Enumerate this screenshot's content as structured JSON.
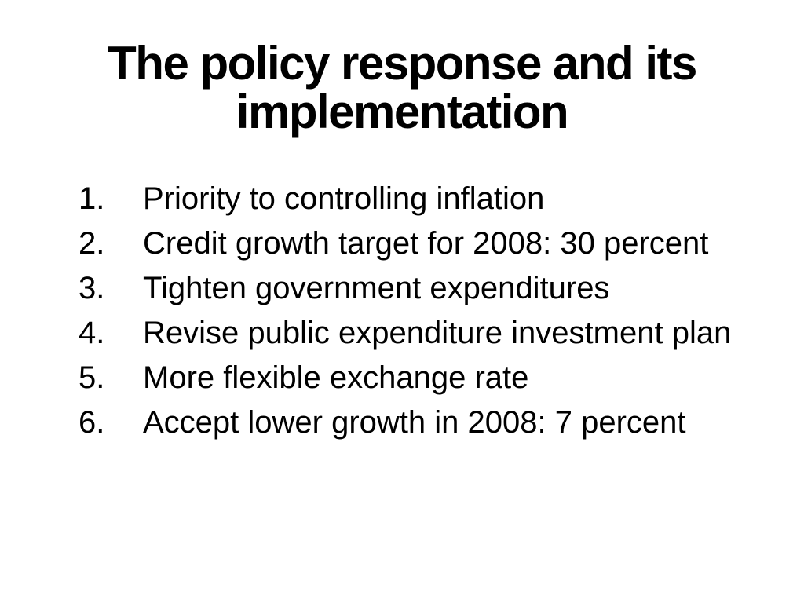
{
  "slide": {
    "colors": {
      "background": "#ffffff",
      "text": "#000000"
    },
    "title": {
      "full_text": "The policy response and its implementation",
      "lines": [
        "The policy response and its",
        "implementation"
      ]
    },
    "list": {
      "style": "decimal",
      "items": [
        {
          "number": "1.",
          "text": "Priority to controlling inflation"
        },
        {
          "number": "2.",
          "text": "Credit growth target for 2008: 30 percent"
        },
        {
          "number": "3.",
          "text": "Tighten government expenditures"
        },
        {
          "number": "4.",
          "text": "Revise public expenditure investment plan"
        },
        {
          "number": "5.",
          "text": "More flexible exchange rate"
        },
        {
          "number": "6.",
          "text": "Accept lower growth in 2008: 7 percent"
        }
      ]
    }
  }
}
